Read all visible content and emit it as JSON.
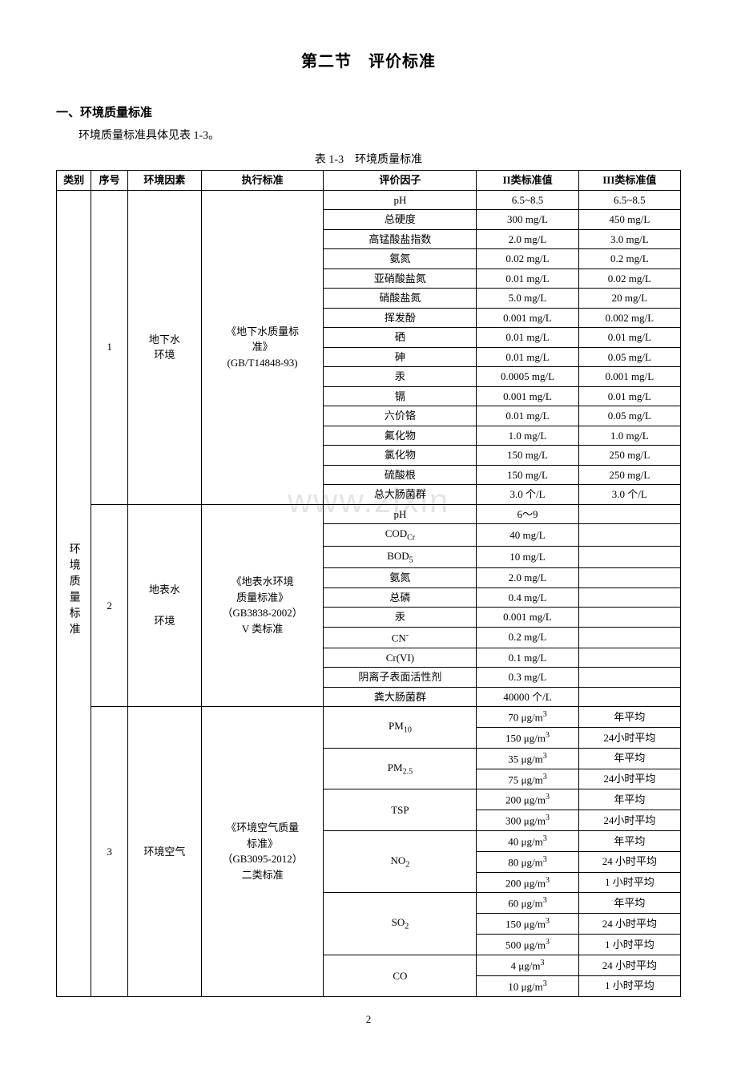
{
  "title": "第二节　评价标准",
  "section_heading": "一、环境质量标准",
  "intro": "环境质量标准具体见表 1-3。",
  "table_caption": "表 1-3　环境质量标准",
  "watermark": "www.zixin",
  "page_number": "2",
  "header": {
    "category": "类别",
    "index": "序号",
    "env": "环境因素",
    "std": "执行标准",
    "factor": "评价因子",
    "val2": "II类标准值",
    "val3": "III类标准值"
  },
  "cat_label": "环境质量标准",
  "groups": [
    {
      "idx": "1",
      "env_lines": [
        "地下水",
        "环境"
      ],
      "std_lines": [
        "《地下水质量标",
        "准》",
        "(GB/T14848-93)"
      ],
      "rows": [
        {
          "f": "pH",
          "v2": "6.5~8.5",
          "v3": "6.5~8.5"
        },
        {
          "f": "总硬度",
          "v2": "300 mg/L",
          "v3": "450 mg/L"
        },
        {
          "f": "高锰酸盐指数",
          "v2": "2.0 mg/L",
          "v3": "3.0 mg/L"
        },
        {
          "f": "氨氮",
          "v2": "0.02 mg/L",
          "v3": "0.2 mg/L"
        },
        {
          "f": "亚硝酸盐氮",
          "v2": "0.01 mg/L",
          "v3": "0.02 mg/L"
        },
        {
          "f": "硝酸盐氮",
          "v2": "5.0 mg/L",
          "v3": "20 mg/L"
        },
        {
          "f": "挥发酚",
          "v2": "0.001 mg/L",
          "v3": "0.002 mg/L"
        },
        {
          "f": "硒",
          "v2": "0.01 mg/L",
          "v3": "0.01 mg/L"
        },
        {
          "f": "砷",
          "v2": "0.01 mg/L",
          "v3": "0.05 mg/L"
        },
        {
          "f": "汞",
          "v2": "0.0005 mg/L",
          "v3": "0.001 mg/L"
        },
        {
          "f": "镉",
          "v2": "0.001 mg/L",
          "v3": "0.01 mg/L"
        },
        {
          "f": "六价铬",
          "v2": "0.01 mg/L",
          "v3": "0.05 mg/L"
        },
        {
          "f": "氟化物",
          "v2": "1.0 mg/L",
          "v3": "1.0 mg/L"
        },
        {
          "f": "氯化物",
          "v2": "150 mg/L",
          "v3": "250 mg/L"
        },
        {
          "f": "硫酸根",
          "v2": "150 mg/L",
          "v3": "250 mg/L"
        },
        {
          "f": "总大肠菌群",
          "v2": "3.0 个/L",
          "v3": "3.0 个/L"
        }
      ]
    },
    {
      "idx": "2",
      "env_lines": [
        "地表水",
        "",
        "环境"
      ],
      "std_lines": [
        "《地表水环境",
        "质量标准》",
        "（GB3838-2002）",
        "V 类标准"
      ],
      "rows": [
        {
          "f": "pH",
          "v2": "6～9",
          "v3": ""
        },
        {
          "f_html": "COD<sub>Cr</sub>",
          "v2": "40 mg/L",
          "v3": ""
        },
        {
          "f_html": "BOD<sub>5</sub>",
          "v2": "10 mg/L",
          "v3": ""
        },
        {
          "f": "氨氮",
          "v2": "2.0 mg/L",
          "v3": ""
        },
        {
          "f": "总磷",
          "v2": "0.4 mg/L",
          "v3": ""
        },
        {
          "f": "汞",
          "v2": "0.001 mg/L",
          "v3": ""
        },
        {
          "f_html": "CN<sup>-</sup>",
          "v2": "0.2 mg/L",
          "v3": ""
        },
        {
          "f": "Cr(VI)",
          "v2": "0.1 mg/L",
          "v3": ""
        },
        {
          "f": "阴离子表面活性剂",
          "v2": "0.3 mg/L",
          "v3": ""
        },
        {
          "f": "粪大肠菌群",
          "v2": "40000 个/L",
          "v3": ""
        }
      ]
    },
    {
      "idx": "3",
      "env_lines": [
        "环境空气"
      ],
      "std_lines": [
        "《环境空气质量",
        "标准》",
        "（GB3095-2012）",
        "二类标准"
      ],
      "spans": [
        {
          "f_html": "PM<sub>10</sub>",
          "rows": [
            {
              "v2_html": "70 μg/m<sup>3</sup>",
              "v3": "年平均"
            },
            {
              "v2_html": "150 μg/m<sup>3</sup>",
              "v3": "24小时平均"
            }
          ]
        },
        {
          "f_html": "PM<sub>2.5</sub>",
          "rows": [
            {
              "v2_html": "35 μg/m<sup>3</sup>",
              "v3": "年平均"
            },
            {
              "v2_html": "75 μg/m<sup>3</sup>",
              "v3": "24小时平均"
            }
          ]
        },
        {
          "f": "TSP",
          "rows": [
            {
              "v2_html": "200 μg/m<sup>3</sup>",
              "v3": "年平均"
            },
            {
              "v2_html": "300 μg/m<sup>3</sup>",
              "v3": "24小时平均"
            }
          ]
        },
        {
          "f_html": "NO<sub>2</sub>",
          "rows": [
            {
              "v2_html": "40 μg/m<sup>3</sup>",
              "v3": "年平均"
            },
            {
              "v2_html": "80 μg/m<sup>3</sup>",
              "v3": "24 小时平均"
            },
            {
              "v2_html": "200 μg/m<sup>3</sup>",
              "v3": "1 小时平均"
            }
          ]
        },
        {
          "f_html": "SO<sub>2</sub>",
          "rows": [
            {
              "v2_html": "60 μg/m<sup>3</sup>",
              "v3": "年平均"
            },
            {
              "v2_html": "150 μg/m<sup>3</sup>",
              "v3": "24 小时平均"
            },
            {
              "v2_html": "500 μg/m<sup>3</sup>",
              "v3": "1 小时平均"
            }
          ]
        },
        {
          "f": "CO",
          "rows": [
            {
              "v2_html": "4 μg/m<sup>3</sup>",
              "v3": "24 小时平均"
            },
            {
              "v2_html": "10 μg/m<sup>3</sup>",
              "v3": "1 小时平均"
            }
          ]
        }
      ]
    }
  ]
}
